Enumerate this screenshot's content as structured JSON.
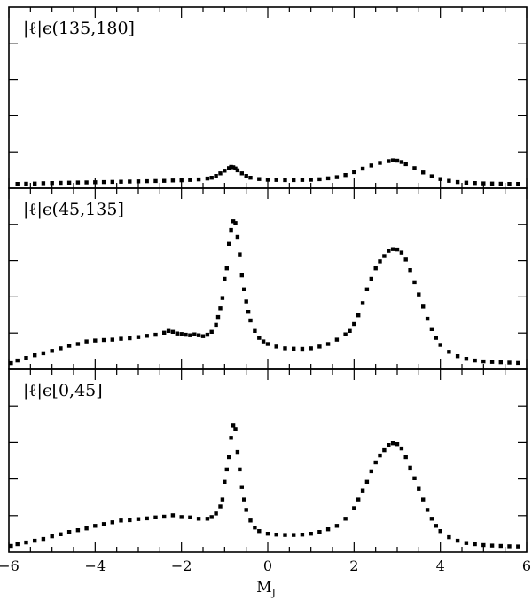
{
  "chart_data": {
    "type": "scatter",
    "xlabel": "M",
    "xlabel_subscript": "J",
    "xlim": [
      -6,
      6
    ],
    "x_ticks": [
      -6,
      -4,
      -2,
      0,
      2,
      4,
      6
    ],
    "y_tick_labels_shown": false,
    "ylim": [
      0,
      1
    ],
    "grid": false,
    "panels": [
      {
        "label": "|ℓ|ϵ(135,180]",
        "points": [
          [
            -5.8,
            0.004
          ],
          [
            -5.6,
            0.005
          ],
          [
            -5.4,
            0.006
          ],
          [
            -5.2,
            0.008
          ],
          [
            -5.0,
            0.009
          ],
          [
            -4.8,
            0.01
          ],
          [
            -4.6,
            0.011
          ],
          [
            -4.4,
            0.012
          ],
          [
            -4.2,
            0.013
          ],
          [
            -4.0,
            0.014
          ],
          [
            -3.8,
            0.015
          ],
          [
            -3.6,
            0.016
          ],
          [
            -3.4,
            0.017
          ],
          [
            -3.2,
            0.018
          ],
          [
            -3.0,
            0.019
          ],
          [
            -2.8,
            0.02
          ],
          [
            -2.6,
            0.021
          ],
          [
            -2.4,
            0.022
          ],
          [
            -2.2,
            0.024
          ],
          [
            -2.0,
            0.025
          ],
          [
            -1.8,
            0.027
          ],
          [
            -1.6,
            0.03
          ],
          [
            -1.4,
            0.035
          ],
          [
            -1.3,
            0.04
          ],
          [
            -1.2,
            0.05
          ],
          [
            -1.1,
            0.065
          ],
          [
            -1.0,
            0.08
          ],
          [
            -0.9,
            0.095
          ],
          [
            -0.85,
            0.102
          ],
          [
            -0.8,
            0.1
          ],
          [
            -0.75,
            0.093
          ],
          [
            -0.7,
            0.082
          ],
          [
            -0.6,
            0.065
          ],
          [
            -0.5,
            0.05
          ],
          [
            -0.4,
            0.04
          ],
          [
            -0.2,
            0.032
          ],
          [
            0.0,
            0.028
          ],
          [
            0.2,
            0.027
          ],
          [
            0.4,
            0.026
          ],
          [
            0.6,
            0.026
          ],
          [
            0.8,
            0.027
          ],
          [
            1.0,
            0.028
          ],
          [
            1.2,
            0.031
          ],
          [
            1.4,
            0.036
          ],
          [
            1.6,
            0.043
          ],
          [
            1.8,
            0.055
          ],
          [
            2.0,
            0.072
          ],
          [
            2.2,
            0.092
          ],
          [
            2.4,
            0.11
          ],
          [
            2.6,
            0.125
          ],
          [
            2.8,
            0.135
          ],
          [
            2.9,
            0.14
          ],
          [
            3.0,
            0.138
          ],
          [
            3.1,
            0.13
          ],
          [
            3.2,
            0.118
          ],
          [
            3.4,
            0.095
          ],
          [
            3.6,
            0.07
          ],
          [
            3.8,
            0.048
          ],
          [
            4.0,
            0.032
          ],
          [
            4.2,
            0.022
          ],
          [
            4.4,
            0.015
          ],
          [
            4.6,
            0.011
          ],
          [
            4.8,
            0.009
          ],
          [
            5.0,
            0.007
          ],
          [
            5.2,
            0.006
          ],
          [
            5.4,
            0.005
          ],
          [
            5.6,
            0.004
          ],
          [
            5.8,
            0.004
          ]
        ]
      },
      {
        "label": "|ℓ|ϵ(45,135]",
        "points": [
          [
            -5.95,
            0.015
          ],
          [
            -5.8,
            0.03
          ],
          [
            -5.6,
            0.045
          ],
          [
            -5.4,
            0.06
          ],
          [
            -5.2,
            0.072
          ],
          [
            -5.0,
            0.085
          ],
          [
            -4.8,
            0.1
          ],
          [
            -4.6,
            0.115
          ],
          [
            -4.4,
            0.125
          ],
          [
            -4.2,
            0.14
          ],
          [
            -4.0,
            0.145
          ],
          [
            -3.8,
            0.148
          ],
          [
            -3.6,
            0.15
          ],
          [
            -3.4,
            0.155
          ],
          [
            -3.2,
            0.158
          ],
          [
            -3.0,
            0.165
          ],
          [
            -2.8,
            0.172
          ],
          [
            -2.6,
            0.178
          ],
          [
            -2.4,
            0.19
          ],
          [
            -2.3,
            0.2
          ],
          [
            -2.2,
            0.195
          ],
          [
            -2.1,
            0.185
          ],
          [
            -2.0,
            0.182
          ],
          [
            -1.9,
            0.178
          ],
          [
            -1.8,
            0.175
          ],
          [
            -1.7,
            0.18
          ],
          [
            -1.6,
            0.175
          ],
          [
            -1.5,
            0.17
          ],
          [
            -1.4,
            0.178
          ],
          [
            -1.3,
            0.195
          ],
          [
            -1.2,
            0.235
          ],
          [
            -1.15,
            0.28
          ],
          [
            -1.1,
            0.33
          ],
          [
            -1.05,
            0.39
          ],
          [
            -1.0,
            0.5
          ],
          [
            -0.95,
            0.56
          ],
          [
            -0.9,
            0.7
          ],
          [
            -0.85,
            0.78
          ],
          [
            -0.8,
            0.83
          ],
          [
            -0.75,
            0.82
          ],
          [
            -0.7,
            0.74
          ],
          [
            -0.65,
            0.64
          ],
          [
            -0.6,
            0.52
          ],
          [
            -0.55,
            0.44
          ],
          [
            -0.5,
            0.37
          ],
          [
            -0.45,
            0.31
          ],
          [
            -0.4,
            0.26
          ],
          [
            -0.3,
            0.2
          ],
          [
            -0.2,
            0.16
          ],
          [
            -0.1,
            0.14
          ],
          [
            0.0,
            0.125
          ],
          [
            0.2,
            0.11
          ],
          [
            0.4,
            0.1
          ],
          [
            0.6,
            0.098
          ],
          [
            0.8,
            0.097
          ],
          [
            1.0,
            0.1
          ],
          [
            1.2,
            0.11
          ],
          [
            1.4,
            0.125
          ],
          [
            1.6,
            0.15
          ],
          [
            1.8,
            0.18
          ],
          [
            1.9,
            0.2
          ],
          [
            2.0,
            0.24
          ],
          [
            2.1,
            0.29
          ],
          [
            2.2,
            0.36
          ],
          [
            2.3,
            0.44
          ],
          [
            2.4,
            0.5
          ],
          [
            2.5,
            0.56
          ],
          [
            2.6,
            0.6
          ],
          [
            2.7,
            0.63
          ],
          [
            2.8,
            0.66
          ],
          [
            2.9,
            0.67
          ],
          [
            3.0,
            0.668
          ],
          [
            3.1,
            0.65
          ],
          [
            3.2,
            0.61
          ],
          [
            3.3,
            0.55
          ],
          [
            3.4,
            0.48
          ],
          [
            3.5,
            0.41
          ],
          [
            3.6,
            0.34
          ],
          [
            3.7,
            0.27
          ],
          [
            3.8,
            0.21
          ],
          [
            3.9,
            0.16
          ],
          [
            4.0,
            0.12
          ],
          [
            4.2,
            0.08
          ],
          [
            4.4,
            0.055
          ],
          [
            4.6,
            0.04
          ],
          [
            4.8,
            0.03
          ],
          [
            5.0,
            0.025
          ],
          [
            5.2,
            0.022
          ],
          [
            5.4,
            0.02
          ],
          [
            5.6,
            0.018
          ],
          [
            5.8,
            0.016
          ]
        ]
      },
      {
        "label": "|ℓ|ϵ[0,45]",
        "points": [
          [
            -5.95,
            0.015
          ],
          [
            -5.8,
            0.025
          ],
          [
            -5.6,
            0.035
          ],
          [
            -5.4,
            0.045
          ],
          [
            -5.2,
            0.055
          ],
          [
            -5.0,
            0.07
          ],
          [
            -4.8,
            0.082
          ],
          [
            -4.6,
            0.095
          ],
          [
            -4.4,
            0.105
          ],
          [
            -4.2,
            0.115
          ],
          [
            -4.0,
            0.13
          ],
          [
            -3.8,
            0.14
          ],
          [
            -3.6,
            0.15
          ],
          [
            -3.4,
            0.16
          ],
          [
            -3.2,
            0.162
          ],
          [
            -3.0,
            0.168
          ],
          [
            -2.8,
            0.172
          ],
          [
            -2.6,
            0.178
          ],
          [
            -2.4,
            0.182
          ],
          [
            -2.2,
            0.19
          ],
          [
            -2.0,
            0.18
          ],
          [
            -1.8,
            0.178
          ],
          [
            -1.6,
            0.17
          ],
          [
            -1.4,
            0.17
          ],
          [
            -1.3,
            0.18
          ],
          [
            -1.2,
            0.2
          ],
          [
            -1.1,
            0.24
          ],
          [
            -1.05,
            0.28
          ],
          [
            -1.0,
            0.38
          ],
          [
            -0.95,
            0.45
          ],
          [
            -0.9,
            0.52
          ],
          [
            -0.85,
            0.63
          ],
          [
            -0.8,
            0.7
          ],
          [
            -0.75,
            0.68
          ],
          [
            -0.7,
            0.55
          ],
          [
            -0.65,
            0.45
          ],
          [
            -0.6,
            0.35
          ],
          [
            -0.55,
            0.28
          ],
          [
            -0.5,
            0.22
          ],
          [
            -0.4,
            0.16
          ],
          [
            -0.3,
            0.12
          ],
          [
            -0.2,
            0.1
          ],
          [
            0.0,
            0.085
          ],
          [
            0.2,
            0.08
          ],
          [
            0.4,
            0.078
          ],
          [
            0.6,
            0.078
          ],
          [
            0.8,
            0.08
          ],
          [
            1.0,
            0.085
          ],
          [
            1.2,
            0.095
          ],
          [
            1.4,
            0.11
          ],
          [
            1.6,
            0.13
          ],
          [
            1.8,
            0.17
          ],
          [
            2.0,
            0.23
          ],
          [
            2.1,
            0.28
          ],
          [
            2.2,
            0.33
          ],
          [
            2.3,
            0.38
          ],
          [
            2.4,
            0.44
          ],
          [
            2.5,
            0.49
          ],
          [
            2.6,
            0.53
          ],
          [
            2.7,
            0.56
          ],
          [
            2.8,
            0.59
          ],
          [
            2.9,
            0.6
          ],
          [
            3.0,
            0.595
          ],
          [
            3.1,
            0.57
          ],
          [
            3.2,
            0.52
          ],
          [
            3.3,
            0.46
          ],
          [
            3.4,
            0.4
          ],
          [
            3.5,
            0.34
          ],
          [
            3.6,
            0.28
          ],
          [
            3.7,
            0.22
          ],
          [
            3.8,
            0.17
          ],
          [
            3.9,
            0.13
          ],
          [
            4.0,
            0.1
          ],
          [
            4.2,
            0.065
          ],
          [
            4.4,
            0.045
          ],
          [
            4.6,
            0.032
          ],
          [
            4.8,
            0.025
          ],
          [
            5.0,
            0.02
          ],
          [
            5.2,
            0.017
          ],
          [
            5.4,
            0.015
          ],
          [
            5.6,
            0.013
          ],
          [
            5.8,
            0.012
          ]
        ]
      }
    ]
  }
}
